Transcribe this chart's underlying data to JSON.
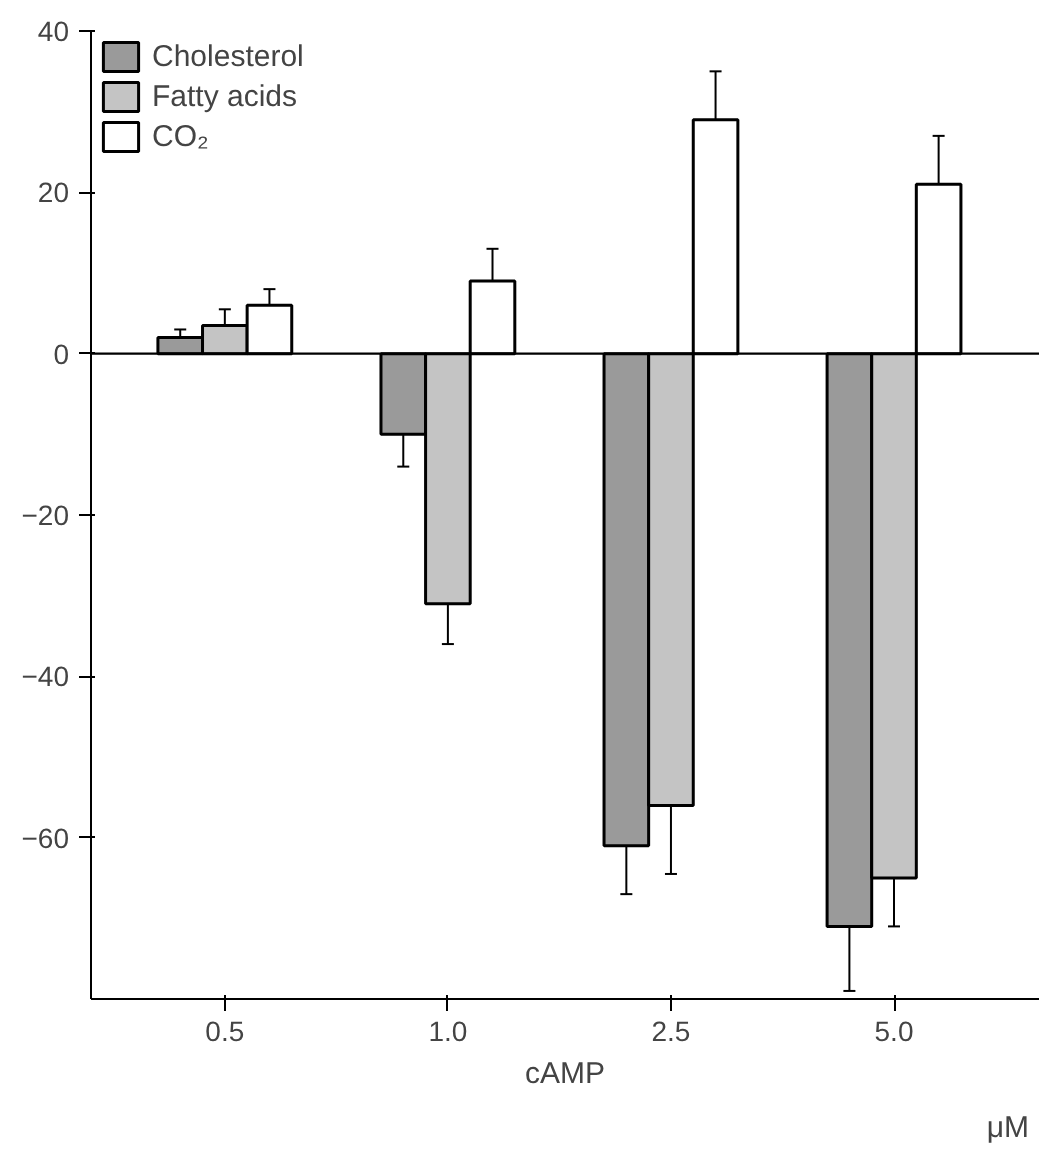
{
  "chart_data": {
    "type": "bar",
    "xlabel": "cAMP",
    "categories": [
      "0.5",
      "1.0",
      "2.5",
      "5.0"
    ],
    "series": [
      {
        "name": "Cholesterol",
        "color": "#9a9a9a",
        "values": [
          2,
          -10,
          -61,
          -71
        ],
        "errors": [
          1,
          4,
          6,
          8
        ]
      },
      {
        "name": "Fatty acids",
        "color": "#c4c4c4",
        "values": [
          3.5,
          -31,
          -56,
          -65
        ],
        "errors": [
          2,
          5,
          8.5,
          6
        ]
      },
      {
        "name": "CO₂",
        "color": "#ffffff",
        "values": [
          6,
          9,
          29,
          21
        ],
        "errors": [
          2,
          4,
          6,
          6
        ]
      }
    ],
    "ylim": [
      -80,
      40
    ],
    "yticks": [
      -60,
      -40,
      -20,
      0,
      20,
      40
    ],
    "grid": false,
    "legend": "top left",
    "ref_lines": [
      {
        "axis": "y",
        "value": 0
      }
    ],
    "annotations": [
      "μM"
    ]
  }
}
